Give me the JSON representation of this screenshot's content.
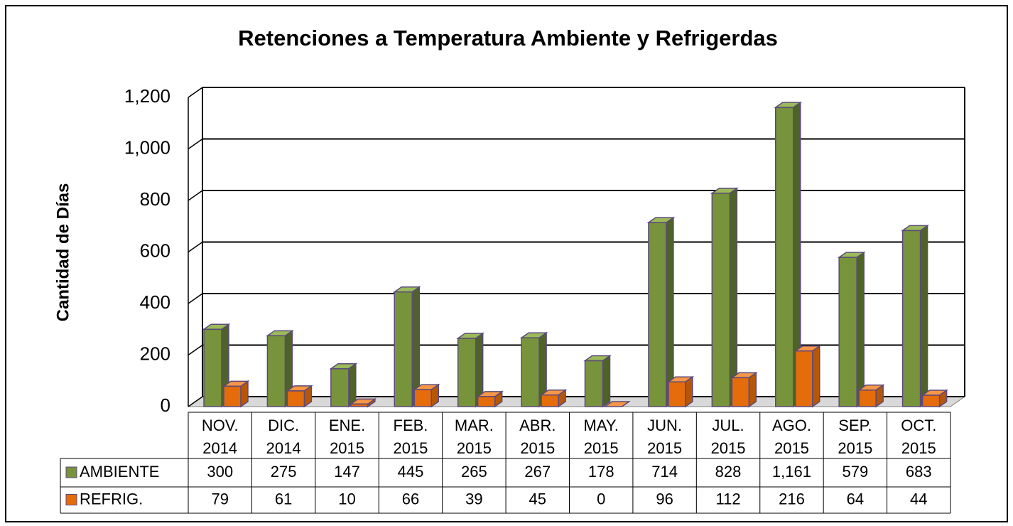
{
  "chart_data": {
    "type": "bar3d",
    "title": "Retenciones a Temperatura  Ambiente y Refrigerdas",
    "y_label": "Cantidad de Días",
    "categories": [
      "NOV. 2014",
      "DIC. 2014",
      "ENE. 2015",
      "FEB. 2015",
      "MAR. 2015",
      "ABR. 2015",
      "MAY. 2015",
      "JUN. 2015",
      "JUL. 2015",
      "AGO. 2015",
      "SEP. 2015",
      "OCT. 2015"
    ],
    "series": [
      {
        "name": "AMBIENTE",
        "color": "#77933c",
        "side": "#4f6228",
        "top": "#9bbb59",
        "values": [
          300,
          275,
          147,
          445,
          265,
          267,
          178,
          714,
          828,
          1161,
          579,
          683
        ],
        "value_labels": [
          "300",
          "275",
          "147",
          "445",
          "265",
          "267",
          "178",
          "714",
          "828",
          "1,161",
          "579",
          "683"
        ]
      },
      {
        "name": "REFRIG.",
        "color": "#e46c0a",
        "side": "#b65708",
        "top": "#f79646",
        "values": [
          79,
          61,
          10,
          66,
          39,
          45,
          0,
          96,
          112,
          216,
          64,
          44
        ]
      }
    ],
    "ylim": [
      0,
      1200
    ],
    "yticks": [
      0,
      200,
      400,
      600,
      800,
      {
        "value": 1000,
        "label": "1,000"
      },
      {
        "value": 1200,
        "label": "1,200"
      }
    ],
    "grid": true
  }
}
